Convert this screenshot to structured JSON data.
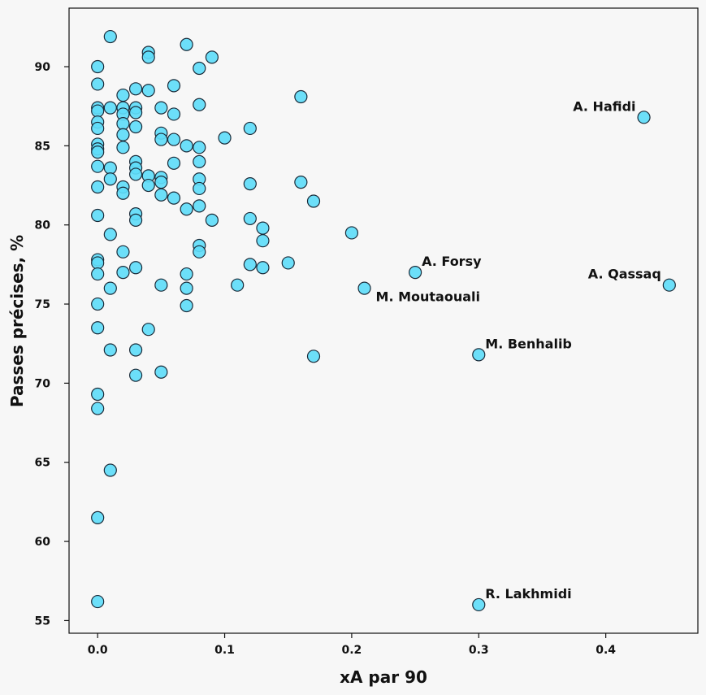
{
  "chart_data": {
    "type": "scatter",
    "title": "",
    "xlabel": "xA par 90",
    "ylabel": "Passes précises, %",
    "xlim": [
      -0.0225,
      0.4725
    ],
    "ylim": [
      54.2,
      93.7
    ],
    "xticks": [
      0.0,
      0.1,
      0.2,
      0.3,
      0.4
    ],
    "xtick_labels": [
      "0.0",
      "0.1",
      "0.2",
      "0.3",
      "0.4"
    ],
    "yticks": [
      55,
      60,
      65,
      70,
      75,
      80,
      85,
      90
    ],
    "ytick_labels": [
      "55",
      "60",
      "65",
      "70",
      "75",
      "80",
      "85",
      "90"
    ],
    "grid": false,
    "colors": {
      "marker_fill": "#5fdcf8",
      "marker_edge": "#1a2a38",
      "background": "#f7f7f7",
      "axes": "#111111"
    },
    "points": [
      [
        0.0,
        90.0
      ],
      [
        0.0,
        88.9
      ],
      [
        0.0,
        87.4
      ],
      [
        0.0,
        87.2
      ],
      [
        0.0,
        86.5
      ],
      [
        0.0,
        86.1
      ],
      [
        0.0,
        85.1
      ],
      [
        0.0,
        84.8
      ],
      [
        0.0,
        84.6
      ],
      [
        0.0,
        83.7
      ],
      [
        0.0,
        82.4
      ],
      [
        0.0,
        80.6
      ],
      [
        0.0,
        77.8
      ],
      [
        0.0,
        77.6
      ],
      [
        0.0,
        76.9
      ],
      [
        0.0,
        75.0
      ],
      [
        0.0,
        73.5
      ],
      [
        0.0,
        69.3
      ],
      [
        0.0,
        68.4
      ],
      [
        0.0,
        61.5
      ],
      [
        0.0,
        56.2
      ],
      [
        0.01,
        91.9
      ],
      [
        0.01,
        87.4
      ],
      [
        0.01,
        83.6
      ],
      [
        0.01,
        82.9
      ],
      [
        0.01,
        79.4
      ],
      [
        0.01,
        76.0
      ],
      [
        0.01,
        72.1
      ],
      [
        0.01,
        64.5
      ],
      [
        0.02,
        88.2
      ],
      [
        0.02,
        87.4
      ],
      [
        0.02,
        87.0
      ],
      [
        0.02,
        86.4
      ],
      [
        0.02,
        85.7
      ],
      [
        0.02,
        84.9
      ],
      [
        0.02,
        82.4
      ],
      [
        0.02,
        82.0
      ],
      [
        0.02,
        78.3
      ],
      [
        0.02,
        77.0
      ],
      [
        0.03,
        88.6
      ],
      [
        0.03,
        87.4
      ],
      [
        0.03,
        87.1
      ],
      [
        0.03,
        86.2
      ],
      [
        0.03,
        84.0
      ],
      [
        0.03,
        83.6
      ],
      [
        0.03,
        83.2
      ],
      [
        0.03,
        80.7
      ],
      [
        0.03,
        80.3
      ],
      [
        0.03,
        77.3
      ],
      [
        0.03,
        72.1
      ],
      [
        0.03,
        70.5
      ],
      [
        0.04,
        90.9
      ],
      [
        0.04,
        90.6
      ],
      [
        0.04,
        88.5
      ],
      [
        0.04,
        83.1
      ],
      [
        0.04,
        82.5
      ],
      [
        0.04,
        73.4
      ],
      [
        0.05,
        87.4
      ],
      [
        0.05,
        85.8
      ],
      [
        0.05,
        85.4
      ],
      [
        0.05,
        83.0
      ],
      [
        0.05,
        82.7
      ],
      [
        0.05,
        81.9
      ],
      [
        0.05,
        76.2
      ],
      [
        0.05,
        70.7
      ],
      [
        0.06,
        88.8
      ],
      [
        0.06,
        87.0
      ],
      [
        0.06,
        85.4
      ],
      [
        0.06,
        83.9
      ],
      [
        0.06,
        81.7
      ],
      [
        0.07,
        91.4
      ],
      [
        0.07,
        85.0
      ],
      [
        0.07,
        81.0
      ],
      [
        0.07,
        76.9
      ],
      [
        0.07,
        76.0
      ],
      [
        0.07,
        74.9
      ],
      [
        0.08,
        89.9
      ],
      [
        0.08,
        87.6
      ],
      [
        0.08,
        84.9
      ],
      [
        0.08,
        84.0
      ],
      [
        0.08,
        82.9
      ],
      [
        0.08,
        82.3
      ],
      [
        0.08,
        81.2
      ],
      [
        0.08,
        78.7
      ],
      [
        0.08,
        78.3
      ],
      [
        0.09,
        90.6
      ],
      [
        0.09,
        80.3
      ],
      [
        0.1,
        85.5
      ],
      [
        0.11,
        76.2
      ],
      [
        0.12,
        86.1
      ],
      [
        0.12,
        82.6
      ],
      [
        0.12,
        80.4
      ],
      [
        0.12,
        77.5
      ],
      [
        0.13,
        79.8
      ],
      [
        0.13,
        79.0
      ],
      [
        0.13,
        77.3
      ],
      [
        0.15,
        77.6
      ],
      [
        0.16,
        88.1
      ],
      [
        0.16,
        82.7
      ],
      [
        0.17,
        81.5
      ],
      [
        0.17,
        71.7
      ],
      [
        0.2,
        79.5
      ],
      [
        0.21,
        76.0
      ],
      [
        0.25,
        77.0
      ],
      [
        0.3,
        71.8
      ],
      [
        0.3,
        56.0
      ],
      [
        0.43,
        86.8
      ],
      [
        0.45,
        76.2
      ]
    ],
    "annotations": [
      {
        "text": "A. Hafidi",
        "x": 0.43,
        "y": 86.8,
        "anchor": "left"
      },
      {
        "text": "A. Forsy",
        "x": 0.25,
        "y": 77.0,
        "anchor": "upper-right"
      },
      {
        "text": "M. Moutaouali",
        "x": 0.21,
        "y": 76.0,
        "anchor": "lower-right"
      },
      {
        "text": "A. Qassaq",
        "x": 0.45,
        "y": 76.2,
        "anchor": "left"
      },
      {
        "text": "M. Benhalib",
        "x": 0.3,
        "y": 71.8,
        "anchor": "upper-right"
      },
      {
        "text": "R. Lakhmidi",
        "x": 0.3,
        "y": 56.0,
        "anchor": "upper-right"
      }
    ]
  }
}
